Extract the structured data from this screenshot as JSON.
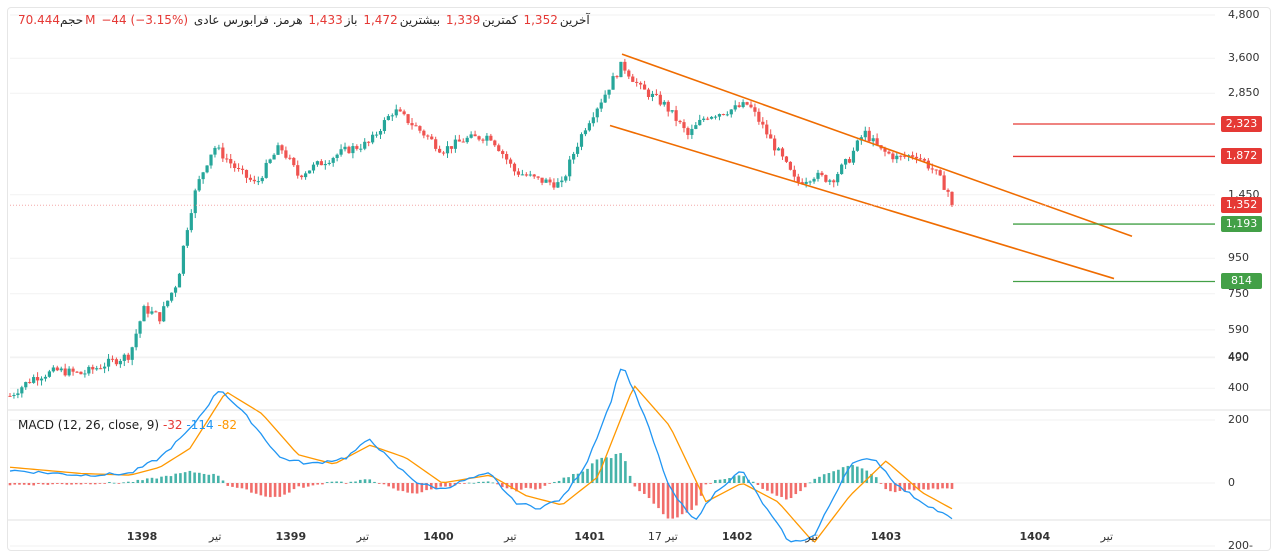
{
  "header": {
    "volume_label": "حجم",
    "volume_value": "70.444M",
    "change": "−44  (−3.15%)",
    "last_label": "آخرین",
    "last_value": "1,352",
    "low_label": "کمترین",
    "low_value": "1,339",
    "high_label": "بیشترین",
    "high_value": "1,472",
    "open_label": "باز",
    "open_value": "1,433",
    "symbol": "هرمز. فرابورس عادی"
  },
  "macd_header": {
    "title": "MACD (12, 26, close, 9)",
    "hist": "-32",
    "macd": "-114",
    "signal": "-82"
  },
  "price_axis": [
    {
      "label": "4,800",
      "value": 4800
    },
    {
      "label": "3,600",
      "value": 3600
    },
    {
      "label": "2,850",
      "value": 2850
    },
    {
      "label": "1,450",
      "value": 1450
    },
    {
      "label": "950",
      "value": 950
    },
    {
      "label": "750",
      "value": 750
    },
    {
      "label": "590",
      "value": 590
    },
    {
      "label": "490",
      "value": 490
    },
    {
      "label": "400",
      "value": 400
    }
  ],
  "macd_axis": [
    {
      "label": "400",
      "value": 400
    },
    {
      "label": "200",
      "value": 200
    },
    {
      "label": "0",
      "value": 0
    },
    {
      "label": "200-",
      "value": -200
    }
  ],
  "time_axis": [
    {
      "label": "1398",
      "bold": true,
      "pos": 0.11
    },
    {
      "label": "تیر",
      "bold": false,
      "pos": 0.171
    },
    {
      "label": "1399",
      "bold": true,
      "pos": 0.234
    },
    {
      "label": "تیر",
      "bold": false,
      "pos": 0.294
    },
    {
      "label": "1400",
      "bold": true,
      "pos": 0.357
    },
    {
      "label": "تیر",
      "bold": false,
      "pos": 0.417
    },
    {
      "label": "1401",
      "bold": true,
      "pos": 0.483
    },
    {
      "label": "17 تیر",
      "bold": false,
      "pos": 0.544
    },
    {
      "label": "1402",
      "bold": true,
      "pos": 0.606
    },
    {
      "label": "تیر",
      "bold": false,
      "pos": 0.668
    },
    {
      "label": "1403",
      "bold": true,
      "pos": 0.73
    },
    {
      "label": "1404",
      "bold": true,
      "pos": 0.854
    },
    {
      "label": "تیر",
      "bold": false,
      "pos": 0.914
    }
  ],
  "levels": [
    {
      "label": "2,323",
      "value": 2323,
      "color": "#e53935",
      "line_color": "#e53935"
    },
    {
      "label": "1,872",
      "value": 1872,
      "color": "#e53935",
      "line_color": "#e53935"
    },
    {
      "label": "1,352",
      "value": 1352,
      "color": "#e53935",
      "line_color": "#f4a8a8",
      "current": true
    },
    {
      "label": "1,193",
      "value": 1193,
      "color": "#43a047",
      "line_color": "#43a047"
    },
    {
      "label": "814",
      "value": 814,
      "color": "#43a047",
      "line_color": "#43a047"
    }
  ],
  "colors": {
    "up": "#26a69a",
    "down": "#ef5350",
    "channel": "#ef6c00",
    "macd_line": "#2196f3",
    "signal_line": "#ff9800",
    "hist_up": "#26a69a",
    "hist_down": "#ef5350"
  },
  "chart_data": {
    "type": "candlestick",
    "y_scale": "log",
    "ylim": [
      350,
      4800
    ],
    "channel": {
      "upper": [
        {
          "t": 0.51,
          "price": 3700
        },
        {
          "t": 0.935,
          "price": 1100
        }
      ],
      "lower": [
        {
          "t": 0.5,
          "price": 2300
        },
        {
          "t": 0.92,
          "price": 830
        }
      ]
    },
    "close_anchors": [
      [
        0.0,
        380
      ],
      [
        0.02,
        430
      ],
      [
        0.04,
        450
      ],
      [
        0.06,
        440
      ],
      [
        0.08,
        470
      ],
      [
        0.1,
        500
      ],
      [
        0.112,
        680
      ],
      [
        0.125,
        640
      ],
      [
        0.14,
        820
      ],
      [
        0.155,
        1500
      ],
      [
        0.17,
        2000
      ],
      [
        0.19,
        1700
      ],
      [
        0.205,
        1550
      ],
      [
        0.225,
        2000
      ],
      [
        0.24,
        1650
      ],
      [
        0.26,
        1800
      ],
      [
        0.28,
        1950
      ],
      [
        0.3,
        2050
      ],
      [
        0.32,
        2550
      ],
      [
        0.34,
        2250
      ],
      [
        0.36,
        1950
      ],
      [
        0.38,
        2100
      ],
      [
        0.4,
        2150
      ],
      [
        0.42,
        1700
      ],
      [
        0.44,
        1600
      ],
      [
        0.46,
        1550
      ],
      [
        0.48,
        2300
      ],
      [
        0.495,
        2800
      ],
      [
        0.51,
        3450
      ],
      [
        0.525,
        2950
      ],
      [
        0.545,
        2650
      ],
      [
        0.565,
        2150
      ],
      [
        0.58,
        2450
      ],
      [
        0.6,
        2550
      ],
      [
        0.615,
        2650
      ],
      [
        0.635,
        2050
      ],
      [
        0.655,
        1570
      ],
      [
        0.67,
        1650
      ],
      [
        0.685,
        1600
      ],
      [
        0.7,
        1850
      ],
      [
        0.712,
        2200
      ],
      [
        0.725,
        1950
      ],
      [
        0.74,
        1850
      ],
      [
        0.755,
        1900
      ],
      [
        0.77,
        1700
      ],
      [
        0.785,
        1420
      ]
    ],
    "macd_anchors": [
      [
        0.0,
        40
      ],
      [
        0.06,
        25
      ],
      [
        0.1,
        30
      ],
      [
        0.125,
        80
      ],
      [
        0.15,
        170
      ],
      [
        0.175,
        300
      ],
      [
        0.2,
        200
      ],
      [
        0.225,
        80
      ],
      [
        0.25,
        60
      ],
      [
        0.28,
        80
      ],
      [
        0.3,
        140
      ],
      [
        0.32,
        60
      ],
      [
        0.34,
        0
      ],
      [
        0.36,
        -20
      ],
      [
        0.38,
        10
      ],
      [
        0.4,
        30
      ],
      [
        0.42,
        -60
      ],
      [
        0.44,
        -80
      ],
      [
        0.46,
        -50
      ],
      [
        0.48,
        60
      ],
      [
        0.5,
        250
      ],
      [
        0.51,
        380
      ],
      [
        0.53,
        200
      ],
      [
        0.55,
        -20
      ],
      [
        0.57,
        -120
      ],
      [
        0.59,
        -20
      ],
      [
        0.61,
        40
      ],
      [
        0.63,
        -80
      ],
      [
        0.65,
        -190
      ],
      [
        0.67,
        -170
      ],
      [
        0.7,
        60
      ],
      [
        0.72,
        80
      ],
      [
        0.74,
        -10
      ],
      [
        0.76,
        -60
      ],
      [
        0.785,
        -114
      ]
    ],
    "signal_anchors": [
      [
        0.0,
        50
      ],
      [
        0.06,
        30
      ],
      [
        0.1,
        25
      ],
      [
        0.125,
        50
      ],
      [
        0.15,
        110
      ],
      [
        0.18,
        290
      ],
      [
        0.21,
        220
      ],
      [
        0.24,
        90
      ],
      [
        0.27,
        60
      ],
      [
        0.3,
        120
      ],
      [
        0.33,
        80
      ],
      [
        0.36,
        0
      ],
      [
        0.4,
        25
      ],
      [
        0.43,
        -40
      ],
      [
        0.46,
        -70
      ],
      [
        0.49,
        20
      ],
      [
        0.52,
        310
      ],
      [
        0.55,
        180
      ],
      [
        0.58,
        -60
      ],
      [
        0.61,
        0
      ],
      [
        0.64,
        -60
      ],
      [
        0.67,
        -190
      ],
      [
        0.7,
        -40
      ],
      [
        0.73,
        70
      ],
      [
        0.76,
        -30
      ],
      [
        0.785,
        -82
      ]
    ]
  }
}
